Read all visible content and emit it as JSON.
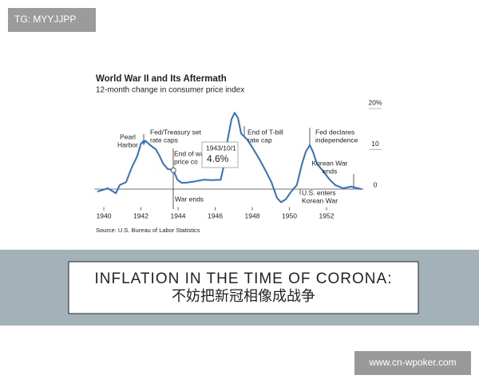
{
  "watermark": "TG: MYYJJPP",
  "chart_data": {
    "type": "line",
    "title": "World War II and Its Aftermath",
    "subtitle": "12-month change in consumer price index",
    "source": "Source: U.S. Bureau of Labor Statistics",
    "color": "#2f6fd0",
    "x": [
      1939.66,
      1940.22,
      1940.65,
      1940.86,
      1941.2,
      1941.5,
      1941.8,
      1942.0,
      1942.24,
      1942.5,
      1942.8,
      1942.99,
      1943.2,
      1943.44,
      1943.75,
      1943.96,
      1944.2,
      1944.5,
      1944.95,
      1945.4,
      1945.8,
      1946.3,
      1946.45,
      1946.67,
      1946.88,
      1947.05,
      1947.23,
      1947.4,
      1947.74,
      1948.09,
      1948.39,
      1948.69,
      1949.03,
      1949.33,
      1949.55,
      1949.8,
      1950.1,
      1950.4,
      1950.67,
      1950.88,
      1951.1,
      1951.27,
      1951.48,
      1951.83,
      1952.17,
      1952.47,
      1952.9,
      1953.33,
      1953.89
    ],
    "values": [
      -0.6,
      0.2,
      -1.0,
      1.0,
      1.7,
      5.2,
      8.0,
      11.1,
      11.8,
      10.7,
      9.7,
      8.2,
      6.2,
      4.9,
      4.6,
      2.3,
      1.5,
      1.6,
      1.9,
      2.3,
      2.2,
      2.3,
      5.4,
      12,
      17,
      18.6,
      17.3,
      13.5,
      12,
      9.5,
      7.2,
      4.7,
      1.7,
      -2.1,
      -3.2,
      -2.5,
      -0.6,
      1.0,
      6.0,
      9.1,
      10.7,
      9.1,
      6.2,
      4.3,
      2.3,
      1.0,
      0.2,
      0.6,
      0
    ],
    "xlim": [
      1939.5,
      1954
    ],
    "xticks": [
      1940,
      1942,
      1944,
      1946,
      1948,
      1950,
      1952
    ],
    "ylim": [
      -4,
      21
    ],
    "yticks": [
      0,
      10,
      {
        "value": 20,
        "label": "20%"
      }
    ],
    "annotations": [
      {
        "lines": [
          "Pearl",
          "Harbor"
        ]
      },
      {
        "lines": [
          "Fed/Treasury set",
          "rate caps"
        ]
      },
      {
        "lines": [
          "End of wa",
          "price co"
        ]
      },
      {
        "lines": [
          "War ends"
        ]
      },
      {
        "lines": [
          "End of T-bill",
          "rate cap"
        ]
      },
      {
        "lines": [
          "Fed declares",
          "independence"
        ]
      },
      {
        "lines": [
          "Korean War",
          "ends"
        ]
      },
      {
        "lines": [
          "U.S. enters",
          "Korean War"
        ]
      }
    ],
    "tooltip": {
      "date": "1943/10/1",
      "value": 4.6,
      "value_label": "4.6%"
    }
  },
  "banner": {
    "line1": "INFLATION IN THE TIME OF CORONA:",
    "line2": "不妨把新冠相像成战争"
  },
  "footer": "www.cn-wpoker.com"
}
